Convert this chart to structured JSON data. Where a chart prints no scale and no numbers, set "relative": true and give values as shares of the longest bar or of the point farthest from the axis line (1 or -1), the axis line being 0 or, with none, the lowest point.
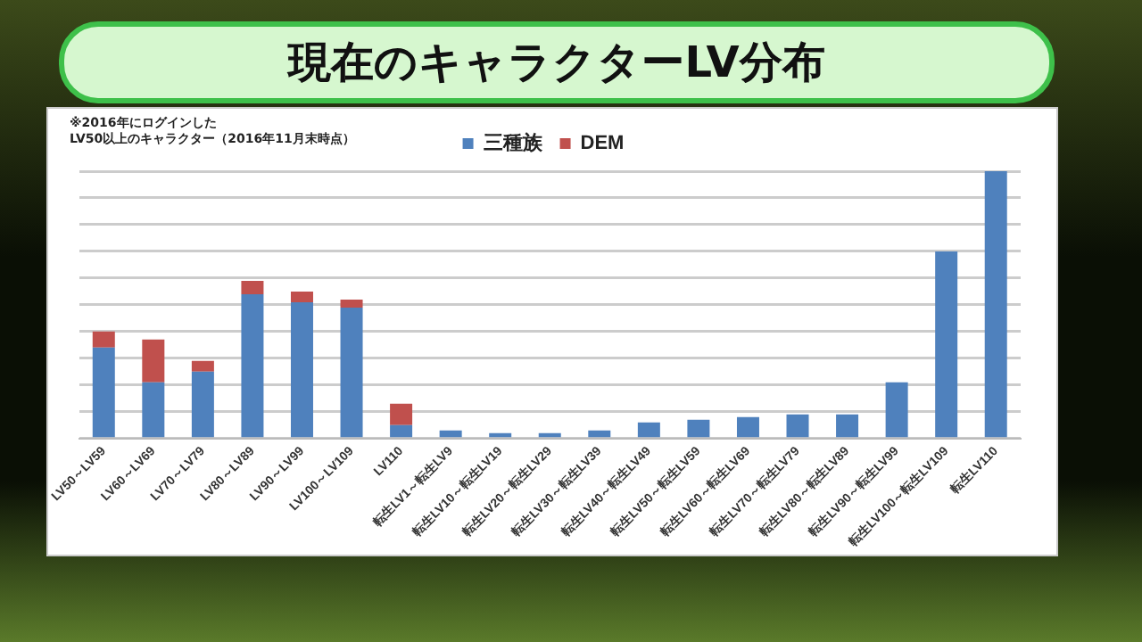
{
  "chart_data": {
    "type": "bar",
    "title": "現在のキャラクターLV分布",
    "annotations": [
      "※2016年にログインした\nLV50以上のキャラクター（2016年11月末時点）"
    ],
    "categories": [
      "LV50～LV59",
      "LV60～LV69",
      "LV70～LV79",
      "LV80～LV89",
      "LV90～LV99",
      "LV100～LV109",
      "LV110",
      "転生LV1～転生LV9",
      "転生LV10～転生LV19",
      "転生LV20～転生LV29",
      "転生LV30～転生LV39",
      "転生LV40～転生LV49",
      "転生LV50～転生LV59",
      "転生LV60～転生LV69",
      "転生LV70～転生LV79",
      "転生LV80～転生LV89",
      "転生LV90～転生LV99",
      "転生LV100～転生LV109",
      "転生LV110"
    ],
    "series": [
      {
        "name": "三種族",
        "color": "#4f81bd",
        "values": [
          0.34,
          0.21,
          0.25,
          0.54,
          0.51,
          0.49,
          0.05,
          0.03,
          0.02,
          0.02,
          0.03,
          0.06,
          0.07,
          0.08,
          0.09,
          0.09,
          0.21,
          0.7,
          1
        ]
      },
      {
        "name": "DEM",
        "color": "#c0504d",
        "values": [
          0.06,
          0.16,
          0.04,
          0.05,
          0.04,
          0.03,
          0.08,
          0,
          0,
          0,
          0,
          0,
          0,
          0,
          0,
          0,
          0,
          0,
          0
        ]
      }
    ],
    "stacked": true,
    "relative": true,
    "grid": "y",
    "legend": "top"
  }
}
